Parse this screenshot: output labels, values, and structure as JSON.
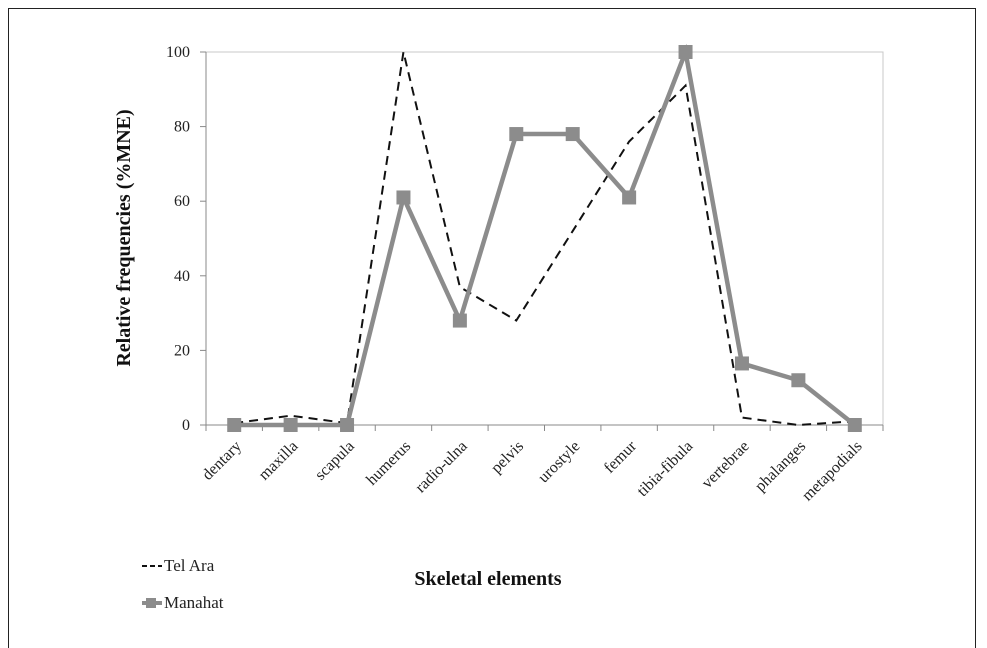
{
  "chart_data": {
    "type": "line",
    "title": "",
    "xlabel": "Skeletal elements",
    "ylabel": "Relative frequencies (%MNE)",
    "categories": [
      "dentary",
      "maxilla",
      "scapula",
      "humerus",
      "radio-ulna",
      "pelvis",
      "urostyle",
      "femur",
      "tibia-fibula",
      "vertebrae",
      "phalanges",
      "metapodials"
    ],
    "ylim": [
      0,
      100
    ],
    "yticks": [
      "0",
      "20",
      "40",
      "60",
      "80",
      "100"
    ],
    "grid": false,
    "legend_position": "bottom-left",
    "series": [
      {
        "name": "Tel Ara",
        "style": "dashed",
        "color": "#111111",
        "values": [
          0.5,
          2.5,
          0.5,
          100,
          37,
          28,
          52,
          76,
          91,
          2,
          0,
          1
        ]
      },
      {
        "name": "Manahat",
        "style": "solid-square-markers",
        "color": "#8c8c8c",
        "values": [
          0,
          0,
          0,
          61,
          28,
          78,
          78,
          61,
          100,
          16.5,
          12,
          0
        ]
      }
    ]
  }
}
